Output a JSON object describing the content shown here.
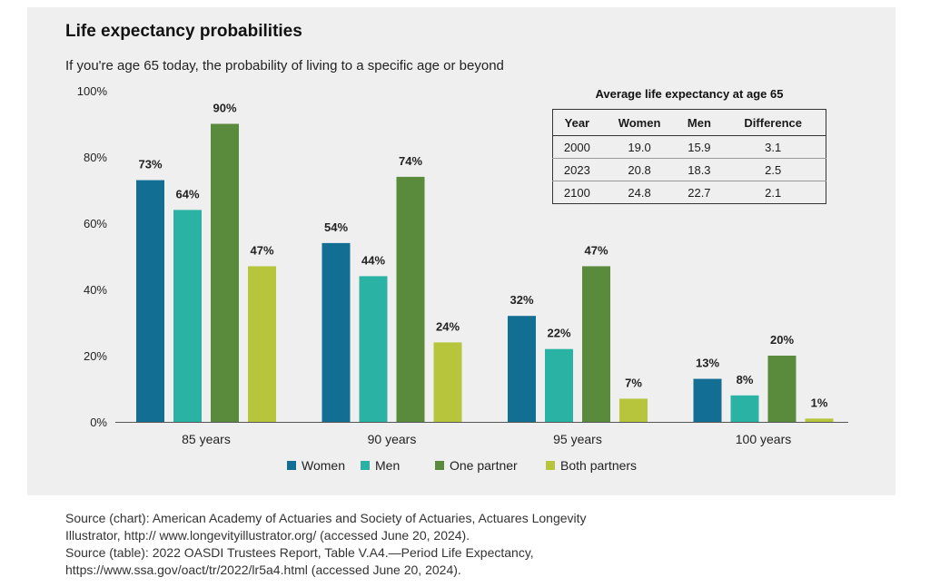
{
  "chart_data": {
    "type": "bar",
    "title": "Life expectancy probabilities",
    "subtitle": "If you're age 65 today, the probability of living to a specific age or beyond",
    "categories": [
      "85 years",
      "90 years",
      "95 years",
      "100 years"
    ],
    "series": [
      {
        "name": "Women",
        "color": "#136e94",
        "values": [
          73,
          54,
          32,
          13
        ]
      },
      {
        "name": "Men",
        "color": "#2ab3a5",
        "values": [
          64,
          44,
          22,
          8
        ]
      },
      {
        "name": "One partner",
        "color": "#5a8a3c",
        "values": [
          90,
          74,
          47,
          20
        ]
      },
      {
        "name": "Both partners",
        "color": "#b7c53c",
        "values": [
          47,
          24,
          7,
          1
        ]
      }
    ],
    "data_label_suffix": "%",
    "ylim": [
      0,
      100
    ],
    "yticks": [
      0,
      20,
      40,
      60,
      80,
      100
    ],
    "ytick_labels": [
      "0%",
      "20%",
      "40%",
      "60%",
      "80%",
      "100%"
    ],
    "grid": false,
    "legend_position": "bottom"
  },
  "life_expectancy_table": {
    "title": "Average life expectancy at age 65",
    "headers": [
      "Year",
      "Women",
      "Men",
      "Difference"
    ],
    "rows": [
      [
        "2000",
        "19.0",
        "15.9",
        "3.1"
      ],
      [
        "2023",
        "20.8",
        "18.3",
        "2.5"
      ],
      [
        "2100",
        "24.8",
        "22.7",
        "2.1"
      ]
    ]
  },
  "sources": {
    "chart_line1": "Source (chart): American Academy of Actuaries and Society of Actuaries, Actuares Longevity",
    "chart_line2": "Illustrator, http:// www.longevityillustrator.org/ (accessed June 20, 2024).",
    "table_line1": "Source (table): 2022 OASDI Trustees Report, Table V.A4.—Period Life Expectancy,",
    "table_line2": "https://www.ssa.gov/oact/tr/2022/lr5a4.html (accessed June 20, 2024)."
  }
}
